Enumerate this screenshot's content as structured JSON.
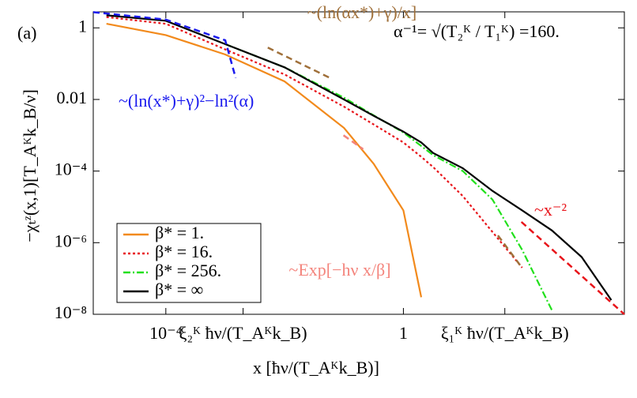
{
  "chart_data": {
    "type": "line",
    "panel": "(a)",
    "formula": "α⁻¹= √(T₂ᴷ / T₁ᴷ) =160.",
    "xlabel": "x [ħν/(T_Aᴷk_B)]",
    "ylabel": "−χₜᶻ(x,1)[T_Aᴷk_B/ν]",
    "xscale": "log",
    "yscale": "log",
    "xlim": [
      6e-06,
      5250
    ],
    "ylim": [
      1e-08,
      2.8
    ],
    "xticks": [
      {
        "value": 0.0001,
        "label": "10⁻⁴"
      },
      {
        "value": 0.002,
        "label": "ξ₂ᴷ ħν/(T_Aᴷk_B)"
      },
      1,
      {
        "value": 51,
        "label": "ξ₁ᴷ ħν/(T_Aᴷk_B)"
      }
    ],
    "yticks": [
      1,
      0.01,
      {
        "value": 0.0001,
        "label": "10⁻⁴"
      },
      {
        "value": 1e-06,
        "label": "10⁻⁶"
      },
      {
        "value": 1e-08,
        "label": "10⁻⁸"
      }
    ],
    "legend": "lower left",
    "x": [
      1e-05,
      0.0001,
      0.001,
      0.01,
      0.1,
      0.316,
      1,
      2,
      3.16,
      10,
      31.6,
      100,
      316,
      1000,
      3162
    ],
    "series": [
      {
        "name": "β* = 1.",
        "color": "#f28a1c",
        "linestyle": "solid",
        "values": [
          1.3,
          0.63,
          0.18,
          0.032,
          0.0016,
          0.00016,
          8e-06,
          3e-08,
          null,
          null,
          null,
          null,
          null,
          null,
          null
        ]
      },
      {
        "name": "β* = 16.",
        "color": "#e8151b",
        "linestyle": "dotted",
        "values": [
          2.0,
          1.3,
          0.25,
          0.05,
          0.0063,
          0.002,
          0.00063,
          0.00025,
          0.00013,
          2e-05,
          2e-06,
          2e-07,
          null,
          null,
          null
        ]
      },
      {
        "name": "β* = 256.",
        "color": "#22e01c",
        "linestyle": "dashdot",
        "values": [
          null,
          null,
          0.35,
          0.079,
          0.0112,
          0.0036,
          0.0012,
          0.0005,
          0.00028,
          0.0001,
          1.6e-05,
          6.3e-07,
          1.3e-08,
          null,
          null
        ]
      },
      {
        "name": "β* = ∞",
        "color": "#000000",
        "linestyle": "solid",
        "values": [
          2.24,
          1.58,
          0.35,
          0.079,
          0.01,
          0.0035,
          0.00126,
          0.00063,
          0.00032,
          0.00012,
          2.8e-05,
          8e-06,
          2.2e-06,
          4e-07,
          2.5e-08
        ]
      }
    ],
    "annotations": [
      {
        "text": "~(ln(x*)+γ)²−ln²(α)",
        "color": "#1a1aee",
        "x": [
          6e-06,
          0.0001,
          0.001,
          0.0015
        ],
        "y": [
          2.75,
          1.7,
          0.45,
          0.04
        ]
      },
      {
        "text": "~(ln(αx*)+γ)/x]",
        "color": "#a0703a",
        "x": [
          0.0052,
          0.062
        ],
        "y": [
          0.28,
          0.038
        ]
      },
      {
        "color": "#a0703a",
        "x": [
          39,
          97
        ],
        "y": [
          1.6e-06,
          2.1e-07
        ]
      },
      {
        "text": "~Exp[−hν x/β]",
        "color": "#f4847c",
        "x": [
          0.098,
          0.21
        ],
        "y": [
          0.001,
          0.00041
        ]
      },
      {
        "text": "~x⁻²",
        "color": "#e8151b",
        "x": [
          97,
          5250
        ],
        "y": [
          3.8e-06,
          1e-08
        ]
      }
    ]
  }
}
